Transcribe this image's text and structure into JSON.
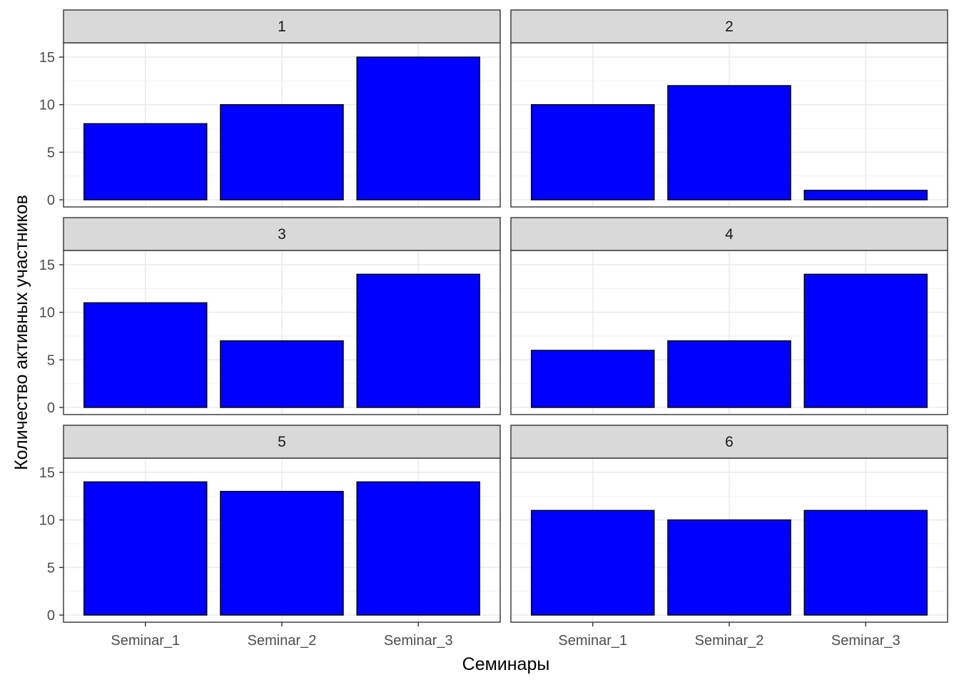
{
  "chart_data": {
    "type": "bar",
    "xlabel": "Семинары",
    "ylabel": "Количество активных участников",
    "categories": [
      "Seminar_1",
      "Seminar_2",
      "Seminar_3"
    ],
    "yticks": [
      0,
      5,
      10,
      15
    ],
    "ylim": [
      -0.75,
      16.5
    ],
    "grid": true,
    "bar_fill": "#0000ff",
    "bar_stroke": "#000000",
    "strip_fill": "#d9d9d9",
    "panels": [
      {
        "label": "1",
        "values": [
          8,
          10,
          15
        ]
      },
      {
        "label": "2",
        "values": [
          10,
          12,
          1
        ]
      },
      {
        "label": "3",
        "values": [
          11,
          7,
          14
        ]
      },
      {
        "label": "4",
        "values": [
          6,
          7,
          14
        ]
      },
      {
        "label": "5",
        "values": [
          14,
          13,
          14
        ]
      },
      {
        "label": "6",
        "values": [
          11,
          10,
          11
        ]
      }
    ]
  }
}
